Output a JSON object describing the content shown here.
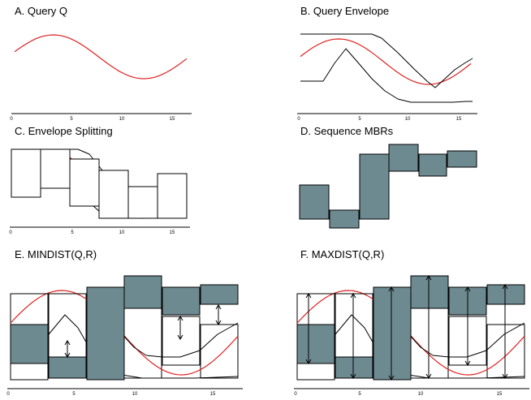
{
  "panels": {
    "a": {
      "title": "A. Query Q"
    },
    "b": {
      "title": "B. Query Envelope"
    },
    "c": {
      "title": "C. Envelope Splitting"
    },
    "d": {
      "title": "D. Sequence MBRs"
    },
    "e": {
      "title": "E. MINDIST(Q,R)"
    },
    "f": {
      "title": "F. MAXDIST(Q,R)"
    }
  },
  "axis_ticks": [
    "0",
    "5",
    "10",
    "15"
  ],
  "colors": {
    "query": "#e02020",
    "envelope": "#000000",
    "mbr_fill": "#6e8a91"
  }
}
